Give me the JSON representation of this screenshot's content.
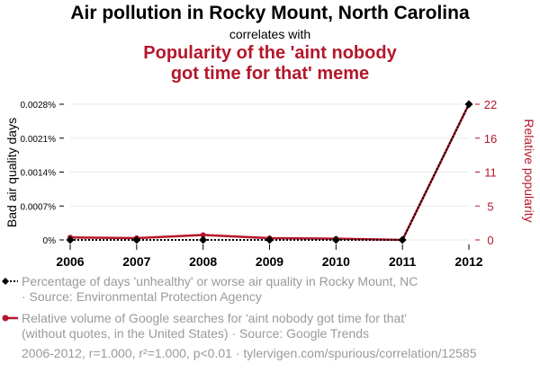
{
  "header": {
    "title": "Air pollution in Rocky Mount, North Carolina",
    "connector": "correlates with",
    "subtitle_line1": "Popularity of the 'aint nobody",
    "subtitle_line2": "got time for that' meme"
  },
  "colors": {
    "series1": "#000000",
    "series2": "#b5172b",
    "grid": "#e8e8e8",
    "legend_text": "#9a9a9a"
  },
  "chart_data": {
    "type": "line",
    "x": [
      "2006",
      "2007",
      "2008",
      "2009",
      "2010",
      "2011",
      "2012"
    ],
    "left_axis": {
      "label": "Bad air quality days",
      "ticks": [
        "0%",
        "0.0007%",
        "0.0014%",
        "0.0021%",
        "0.0028%"
      ],
      "tick_values": [
        0,
        0.0007,
        0.0014,
        0.0021,
        0.0028
      ],
      "range": [
        0,
        0.0028
      ]
    },
    "right_axis": {
      "label": "Relative popularity",
      "ticks": [
        "0",
        "5",
        "11",
        "16",
        "22"
      ],
      "tick_values": [
        0,
        5.5,
        11,
        16.5,
        22
      ],
      "range": [
        0,
        22
      ]
    },
    "series": [
      {
        "name": "Percentage of days 'unhealthy' or worse air quality in Rocky Mount, NC",
        "axis": "left",
        "color": "#000000",
        "marker": "diamond",
        "line_style": "dotted",
        "values": [
          0,
          0,
          0,
          0,
          0,
          0,
          0.0028
        ]
      },
      {
        "name": "Relative volume of Google searches for 'aint nobody got time for that'",
        "axis": "right",
        "color": "#b5172b",
        "marker": "circle",
        "line_style": "solid",
        "values": [
          0.4,
          0.3,
          0.8,
          0.3,
          0.2,
          0,
          22
        ]
      }
    ],
    "grid": true
  },
  "legend": {
    "series1_line1": "Percentage of days 'unhealthy' or worse air quality in Rocky Mount, NC",
    "series1_line2": "· Source: Environmental Protection Agency",
    "series2_line1": "Relative volume of Google searches for 'aint nobody got time for that'",
    "series2_line2": "(without quotes, in the United States) · Source: Google Trends"
  },
  "footer": {
    "stats": "2006-2012, r=1.000, r²=1.000, p<0.01 · tylervigen.com/spurious/correlation/12585"
  }
}
